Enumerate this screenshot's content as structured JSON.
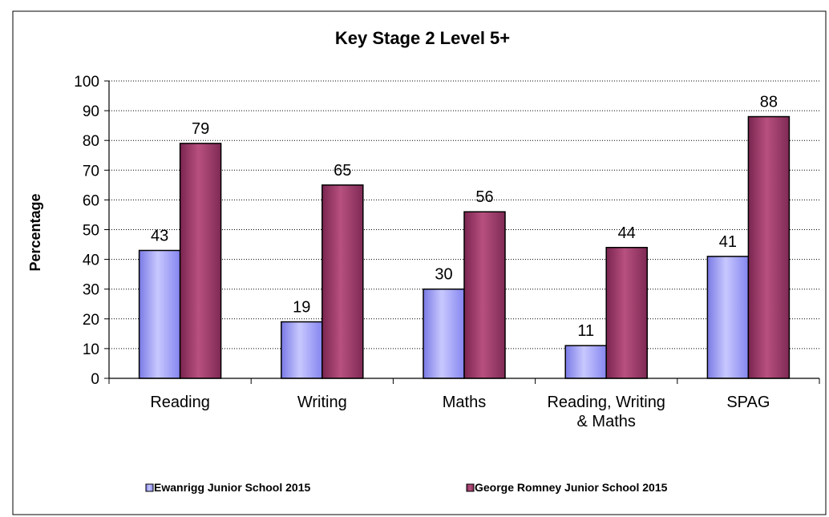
{
  "chart_data": {
    "type": "bar",
    "title": "Key Stage 2 Level 5+",
    "xlabel": "",
    "ylabel": "Percentage",
    "ylim": [
      0,
      100
    ],
    "yticks": [
      0,
      10,
      20,
      30,
      40,
      50,
      60,
      70,
      80,
      90,
      100
    ],
    "grid": true,
    "legend_position": "bottom",
    "categories": [
      [
        "Reading"
      ],
      [
        "Writing"
      ],
      [
        "Maths"
      ],
      [
        "Reading, Writing",
        "& Maths"
      ],
      [
        "SPAG"
      ]
    ],
    "series": [
      {
        "name": "Ewanrigg Junior School 2015",
        "values": [
          43,
          19,
          30,
          11,
          41
        ],
        "color": "#9999ff"
      },
      {
        "name": "George Romney Junior School 2015",
        "values": [
          79,
          65,
          56,
          44,
          88
        ],
        "color": "#993366"
      }
    ],
    "data_labels": [
      [
        "43",
        "19",
        "30",
        "11",
        "41"
      ],
      [
        "79",
        "65",
        "56",
        "44",
        "88"
      ]
    ]
  }
}
